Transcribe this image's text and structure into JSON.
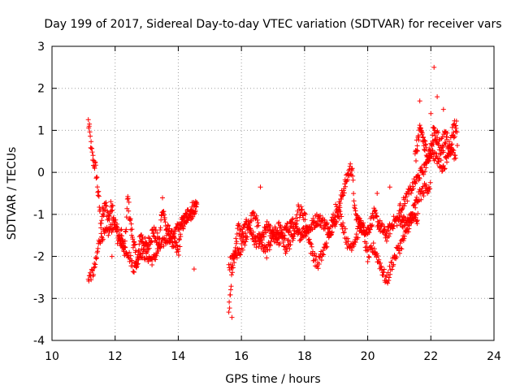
{
  "chart_data": {
    "type": "scatter",
    "title": "Day 199 of 2017, Sidereal Day-to-day VTEC variation (SDTVAR) for receiver vars",
    "xlabel": "GPS time / hours",
    "ylabel": "SDTVAR / TECUs",
    "xlim": [
      10,
      24
    ],
    "ylim": [
      -4,
      3
    ],
    "xticks": [
      10,
      12,
      14,
      16,
      18,
      20,
      22,
      24
    ],
    "yticks": [
      -4,
      -3,
      -2,
      -1,
      0,
      1,
      2,
      3
    ],
    "xtick_labels": [
      "10",
      "12",
      "14",
      "16",
      "18",
      "20",
      "22",
      "24"
    ],
    "ytick_labels": [
      "-4",
      "-3",
      "-2",
      "-1",
      "0",
      "1",
      "2",
      "3"
    ],
    "grid": true,
    "marker": "+",
    "color": "#ff0000",
    "series": [
      {
        "name": "SDTVAR",
        "anchors": [
          [
            11.15,
            1.2
          ],
          [
            11.2,
            0.9
          ],
          [
            11.25,
            0.5
          ],
          [
            11.3,
            0.3
          ],
          [
            11.35,
            0.2
          ],
          [
            11.4,
            0.0
          ],
          [
            11.45,
            -0.4
          ],
          [
            11.5,
            -0.8
          ],
          [
            11.55,
            -1.2
          ],
          [
            11.6,
            -1.0
          ],
          [
            11.7,
            -0.8
          ],
          [
            11.8,
            -1.1
          ],
          [
            11.9,
            -0.7
          ],
          [
            12.0,
            -1.3
          ],
          [
            12.1,
            -1.6
          ],
          [
            12.2,
            -1.5
          ],
          [
            12.3,
            -1.9
          ],
          [
            12.4,
            -0.6
          ],
          [
            12.5,
            -1.3
          ],
          [
            12.7,
            -2.2
          ],
          [
            12.8,
            -1.5
          ],
          [
            13.0,
            -1.8
          ],
          [
            13.2,
            -1.4
          ],
          [
            13.4,
            -1.7
          ],
          [
            13.5,
            -0.7
          ],
          [
            13.6,
            -1.3
          ],
          [
            13.8,
            -1.6
          ],
          [
            14.0,
            -1.9
          ],
          [
            14.1,
            -1.3
          ],
          [
            14.3,
            -1.0
          ],
          [
            14.5,
            -0.8
          ],
          [
            14.6,
            -0.8
          ]
        ],
        "anchors_b": [
          [
            11.15,
            -2.5
          ],
          [
            11.3,
            -2.4
          ],
          [
            11.4,
            -2.1
          ],
          [
            11.5,
            -1.6
          ],
          [
            11.6,
            -1.5
          ],
          [
            11.8,
            -1.4
          ],
          [
            12.0,
            -1.2
          ],
          [
            12.2,
            -1.7
          ],
          [
            12.4,
            -1.9
          ],
          [
            12.6,
            -2.3
          ],
          [
            12.8,
            -1.9
          ],
          [
            13.0,
            -2.0
          ],
          [
            13.2,
            -2.1
          ],
          [
            13.4,
            -1.8
          ],
          [
            13.6,
            -1.6
          ],
          [
            13.8,
            -1.5
          ],
          [
            14.0,
            -1.3
          ],
          [
            14.2,
            -1.1
          ],
          [
            14.4,
            -1.0
          ],
          [
            14.6,
            -0.8
          ]
        ],
        "anchors_c": [
          [
            15.6,
            -3.3
          ],
          [
            15.65,
            -2.9
          ],
          [
            15.7,
            -2.4
          ],
          [
            15.8,
            -1.8
          ],
          [
            15.9,
            -1.3
          ],
          [
            16.0,
            -1.5
          ],
          [
            16.2,
            -1.2
          ],
          [
            16.4,
            -1.6
          ],
          [
            16.6,
            -1.7
          ],
          [
            16.8,
            -1.3
          ],
          [
            17.0,
            -1.5
          ],
          [
            17.2,
            -1.6
          ],
          [
            17.4,
            -1.4
          ],
          [
            17.6,
            -1.2
          ],
          [
            17.8,
            -1.5
          ],
          [
            18.0,
            -1.4
          ],
          [
            18.2,
            -1.3
          ],
          [
            18.4,
            -1.1
          ],
          [
            18.6,
            -1.2
          ],
          [
            18.8,
            -1.4
          ],
          [
            19.0,
            -1.1
          ],
          [
            19.2,
            -0.5
          ],
          [
            19.4,
            0.0
          ],
          [
            19.5,
            0.1
          ],
          [
            19.6,
            -1.0
          ],
          [
            19.8,
            -1.3
          ],
          [
            20.0,
            -1.4
          ],
          [
            20.2,
            -1.0
          ],
          [
            20.4,
            -1.3
          ],
          [
            20.6,
            -1.5
          ],
          [
            20.8,
            -1.2
          ],
          [
            21.0,
            -1.1
          ],
          [
            21.2,
            -1.2
          ],
          [
            21.4,
            -1.1
          ],
          [
            21.6,
            -1.1
          ]
        ],
        "anchors_d": [
          [
            15.6,
            -2.2
          ],
          [
            15.8,
            -2.0
          ],
          [
            16.0,
            -1.8
          ],
          [
            16.2,
            -1.4
          ],
          [
            16.4,
            -0.9
          ],
          [
            16.6,
            -1.6
          ],
          [
            16.8,
            -1.9
          ],
          [
            17.0,
            -1.5
          ],
          [
            17.2,
            -1.3
          ],
          [
            17.4,
            -1.8
          ],
          [
            17.6,
            -1.6
          ],
          [
            17.8,
            -0.9
          ],
          [
            18.0,
            -1.0
          ],
          [
            18.2,
            -1.8
          ],
          [
            18.4,
            -2.2
          ],
          [
            18.6,
            -1.9
          ],
          [
            18.8,
            -1.4
          ],
          [
            19.0,
            -0.8
          ],
          [
            19.2,
            -1.2
          ],
          [
            19.4,
            -1.8
          ],
          [
            19.6,
            -1.6
          ],
          [
            19.8,
            -1.2
          ],
          [
            20.0,
            -2.0
          ],
          [
            20.2,
            -1.8
          ],
          [
            20.4,
            -2.2
          ],
          [
            20.6,
            -2.6
          ],
          [
            20.8,
            -2.1
          ],
          [
            21.0,
            -1.8
          ],
          [
            21.2,
            -1.5
          ],
          [
            21.4,
            -1.0
          ],
          [
            21.6,
            -0.6
          ],
          [
            21.8,
            -0.4
          ],
          [
            22.0,
            -0.3
          ]
        ],
        "anchors_e": [
          [
            21.5,
            0.3
          ],
          [
            21.6,
            0.8
          ],
          [
            21.7,
            1.0
          ],
          [
            21.8,
            0.6
          ],
          [
            21.9,
            0.4
          ],
          [
            22.0,
            0.5
          ],
          [
            22.1,
            1.0
          ],
          [
            22.2,
            0.8
          ],
          [
            22.3,
            0.6
          ],
          [
            22.4,
            0.7
          ],
          [
            22.5,
            0.9
          ],
          [
            22.6,
            0.5
          ],
          [
            22.7,
            1.0
          ],
          [
            22.8,
            1.1
          ],
          [
            22.85,
            0.8
          ]
        ],
        "anchors_f": [
          [
            21.0,
            -0.9
          ],
          [
            21.3,
            -0.5
          ],
          [
            21.6,
            -0.1
          ],
          [
            21.8,
            0.1
          ],
          [
            22.0,
            0.5
          ],
          [
            22.2,
            0.3
          ],
          [
            22.4,
            0.1
          ],
          [
            22.6,
            0.6
          ],
          [
            22.8,
            0.3
          ]
        ],
        "outliers": [
          [
            22.1,
            2.5
          ],
          [
            22.2,
            1.8
          ],
          [
            21.65,
            1.7
          ],
          [
            22.4,
            1.5
          ],
          [
            22.0,
            1.4
          ],
          [
            14.5,
            -2.3
          ],
          [
            11.9,
            -2.0
          ],
          [
            19.45,
            0.2
          ],
          [
            20.7,
            -0.35
          ],
          [
            20.3,
            -0.5
          ],
          [
            16.6,
            -0.35
          ],
          [
            15.7,
            -3.45
          ]
        ]
      }
    ]
  }
}
